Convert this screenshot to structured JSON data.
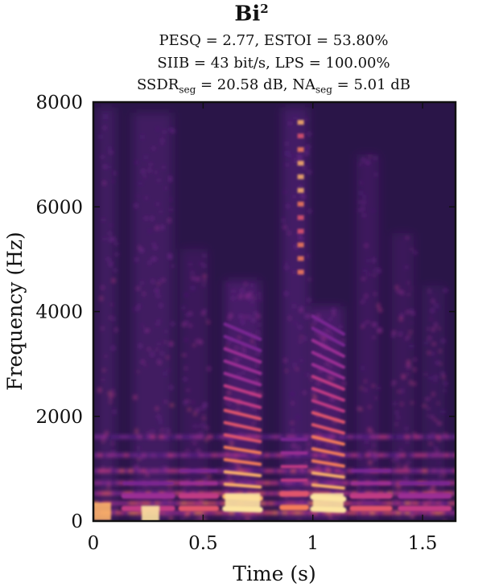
{
  "chart_data": {
    "type": "heatmap",
    "title": "Bi",
    "title_sup": "2",
    "metrics": {
      "line1": "PESQ = 2.77, ESTOI = 53.80%",
      "line2": "SIIB = 43 bit/s, LPS = 100.00%",
      "line3_a": "SSDR",
      "line3_a_sub": "seg",
      "line3_b": " = 20.58 dB, NA",
      "line3_b_sub": "seg",
      "line3_c": " = 5.01 dB"
    },
    "xlabel": "Time (s)",
    "ylabel": "Frequency (Hz)",
    "xlim": [
      0,
      1.65
    ],
    "ylim": [
      0,
      8000
    ],
    "xticks": [
      0,
      0.5,
      1,
      1.5
    ],
    "xtick_labels": [
      "0",
      "0.5",
      "1",
      "1.5"
    ],
    "yticks": [
      0,
      2000,
      4000,
      6000,
      8000
    ],
    "ytick_labels": [
      "0",
      "2000",
      "4000",
      "6000",
      "8000"
    ],
    "colormap": "magma",
    "colors": {
      "background": "#2a1548",
      "frame": "#111111"
    }
  }
}
